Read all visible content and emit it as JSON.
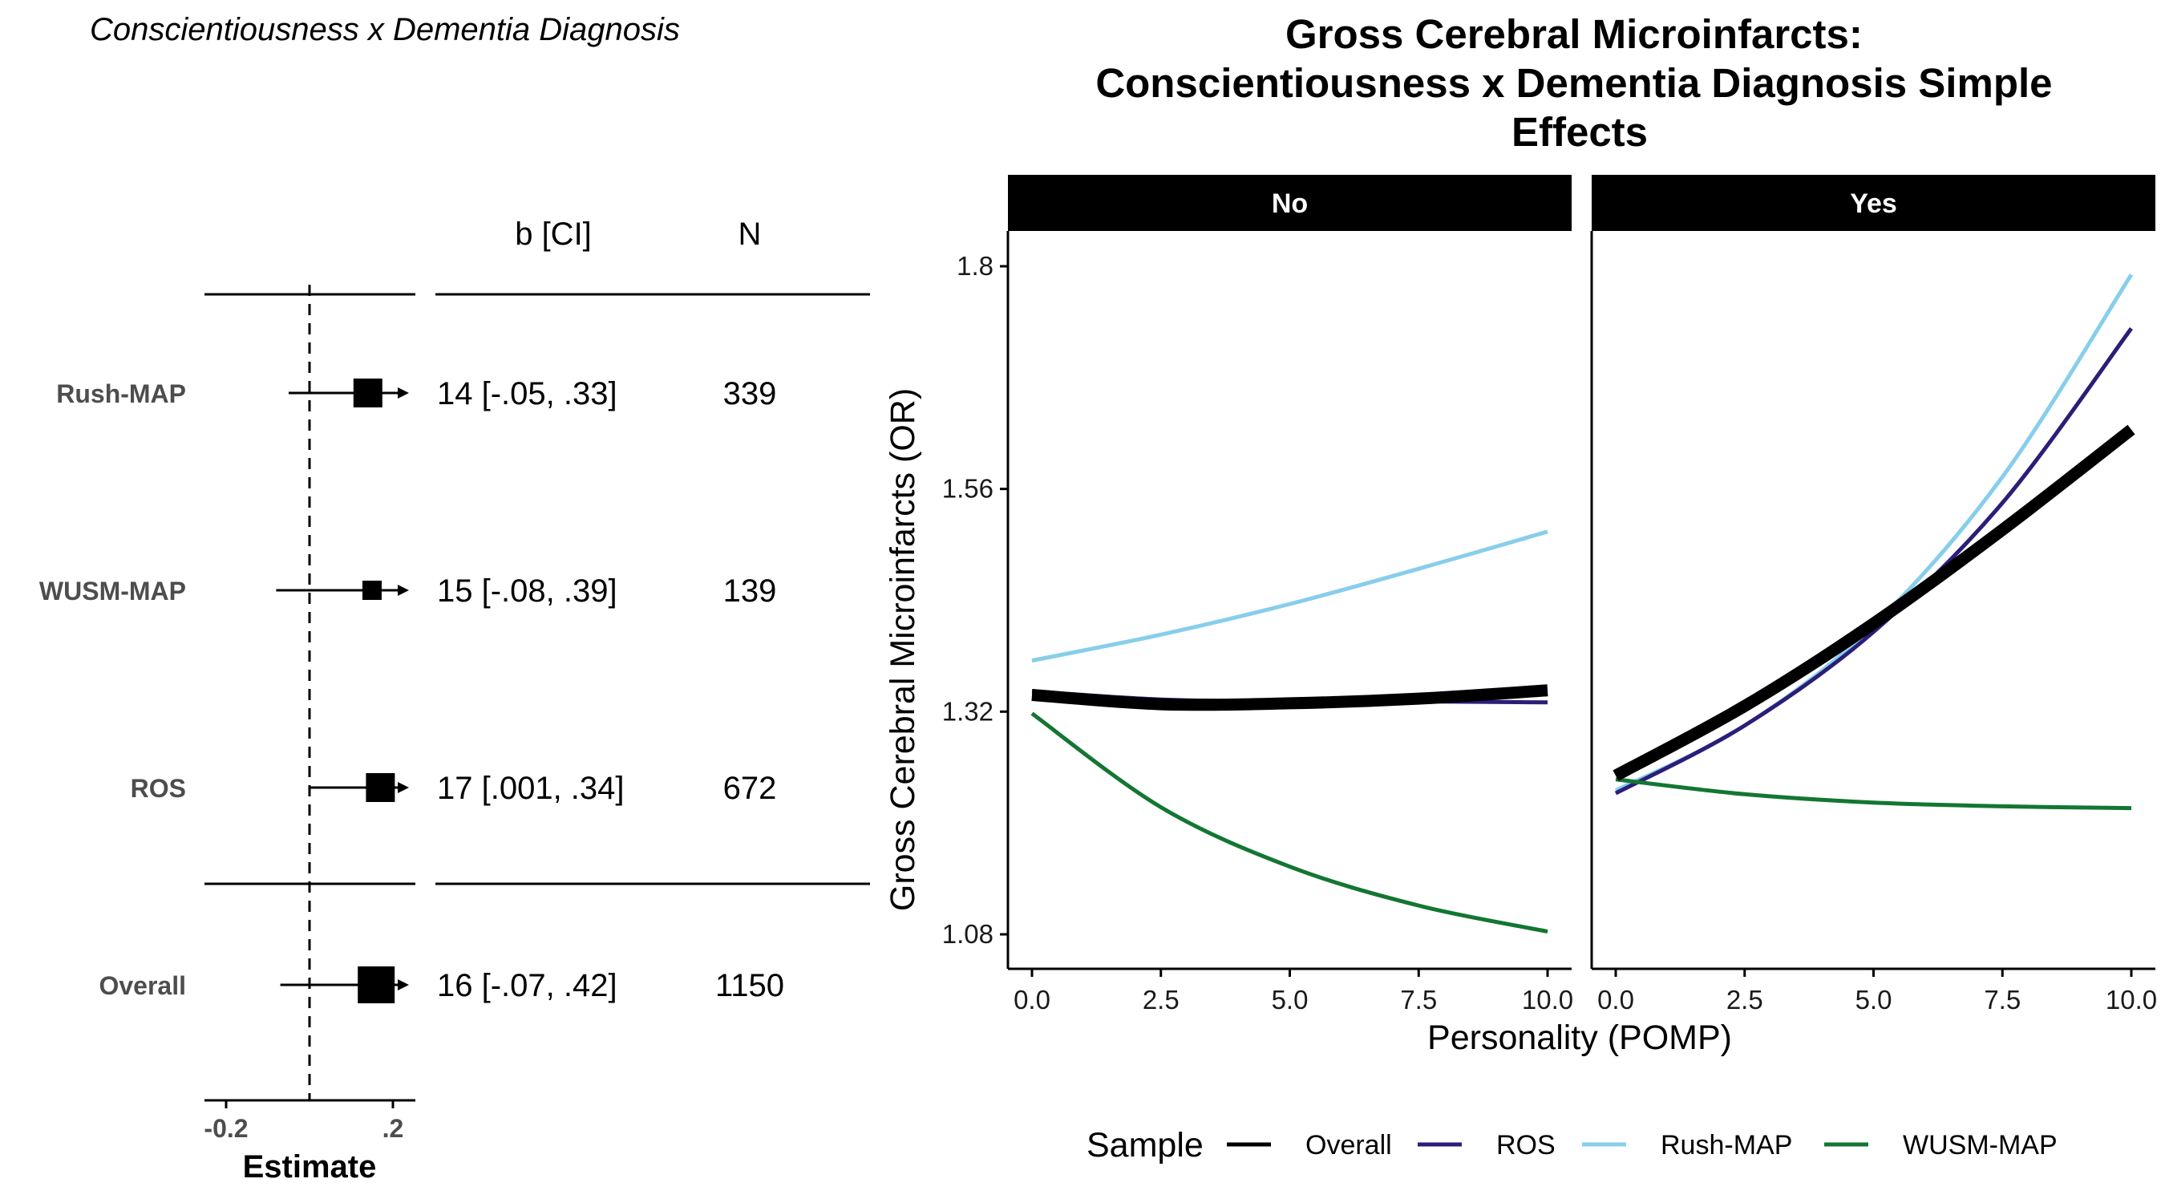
{
  "forest": {
    "title": "Conscientiousness x Dementia Diagnosis",
    "header_b": "b [CI]",
    "header_n": "N",
    "xlabel": "Estimate",
    "xticks": [
      "-0.2",
      ".2"
    ],
    "xlim": [
      -0.25,
      0.25
    ],
    "rows": [
      {
        "label": "Rush-MAP",
        "est": 0.14,
        "lo": -0.05,
        "hi": 0.33,
        "text": "14 [-.05, .33]",
        "n": "339",
        "size": "large"
      },
      {
        "label": "WUSM-MAP",
        "est": 0.15,
        "lo": -0.08,
        "hi": 0.39,
        "text": "15 [-.08, .39]",
        "n": "139",
        "size": "small"
      },
      {
        "label": "ROS",
        "est": 0.17,
        "lo": 0.001,
        "hi": 0.34,
        "text": "17 [.001, .34]",
        "n": "672",
        "size": "large"
      },
      {
        "label": "Overall",
        "est": 0.16,
        "lo": -0.07,
        "hi": 0.42,
        "text": "16 [-.07, .42]",
        "n": "1150",
        "size": "large"
      }
    ]
  },
  "chart_data": {
    "type": "line",
    "title": "Gross Cerebral Microinfarcts:\nConscientiousness x Dementia Diagnosis Simple\nEffects",
    "xlabel": "Personality (POMP)",
    "ylabel": "Gross Cerebral Microinfarcts (OR)",
    "xlim": [
      0,
      10
    ],
    "ylim": [
      1.08,
      1.8
    ],
    "xticks": [
      "0.0",
      "2.5",
      "5.0",
      "7.5",
      "10.0"
    ],
    "yticks": [
      "1.08",
      "1.32",
      "1.56",
      "1.8"
    ],
    "legend_title": "Sample",
    "legend_position": "bottom",
    "panels": [
      {
        "label": "No",
        "series": [
          {
            "name": "Overall",
            "color": "#000000",
            "x": [
              0,
              2.5,
              5,
              7.5,
              10
            ],
            "y": [
              1.338,
              1.328,
              1.329,
              1.334,
              1.343
            ]
          },
          {
            "name": "ROS",
            "color": "#2b1e78",
            "x": [
              0,
              2.5,
              5,
              7.5,
              10
            ],
            "y": [
              1.342,
              1.333,
              1.331,
              1.331,
              1.33
            ]
          },
          {
            "name": "Rush-MAP",
            "color": "#87ceeb",
            "x": [
              0,
              2.5,
              5,
              7.5,
              10
            ],
            "y": [
              1.375,
              1.403,
              1.436,
              1.474,
              1.514
            ]
          },
          {
            "name": "WUSM-MAP",
            "color": "#137632",
            "x": [
              0,
              2.5,
              5,
              7.5,
              10
            ],
            "y": [
              1.318,
              1.217,
              1.153,
              1.111,
              1.083
            ]
          }
        ]
      },
      {
        "label": "Yes",
        "series": [
          {
            "name": "Overall",
            "color": "#000000",
            "x": [
              0,
              2.5,
              5,
              7.5,
              10
            ],
            "y": [
              1.251,
              1.326,
              1.415,
              1.516,
              1.624
            ]
          },
          {
            "name": "ROS",
            "color": "#2b1e78",
            "x": [
              0,
              2.5,
              5,
              7.5,
              10
            ],
            "y": [
              1.232,
              1.305,
              1.406,
              1.545,
              1.733
            ]
          },
          {
            "name": "Rush-MAP",
            "color": "#87ceeb",
            "x": [
              0,
              2.5,
              5,
              7.5,
              10
            ],
            "y": [
              1.235,
              1.305,
              1.413,
              1.573,
              1.791
            ]
          },
          {
            "name": "WUSM-MAP",
            "color": "#137632",
            "x": [
              0,
              2.5,
              5,
              7.5,
              10
            ],
            "y": [
              1.247,
              1.231,
              1.222,
              1.218,
              1.216
            ]
          }
        ]
      }
    ]
  }
}
